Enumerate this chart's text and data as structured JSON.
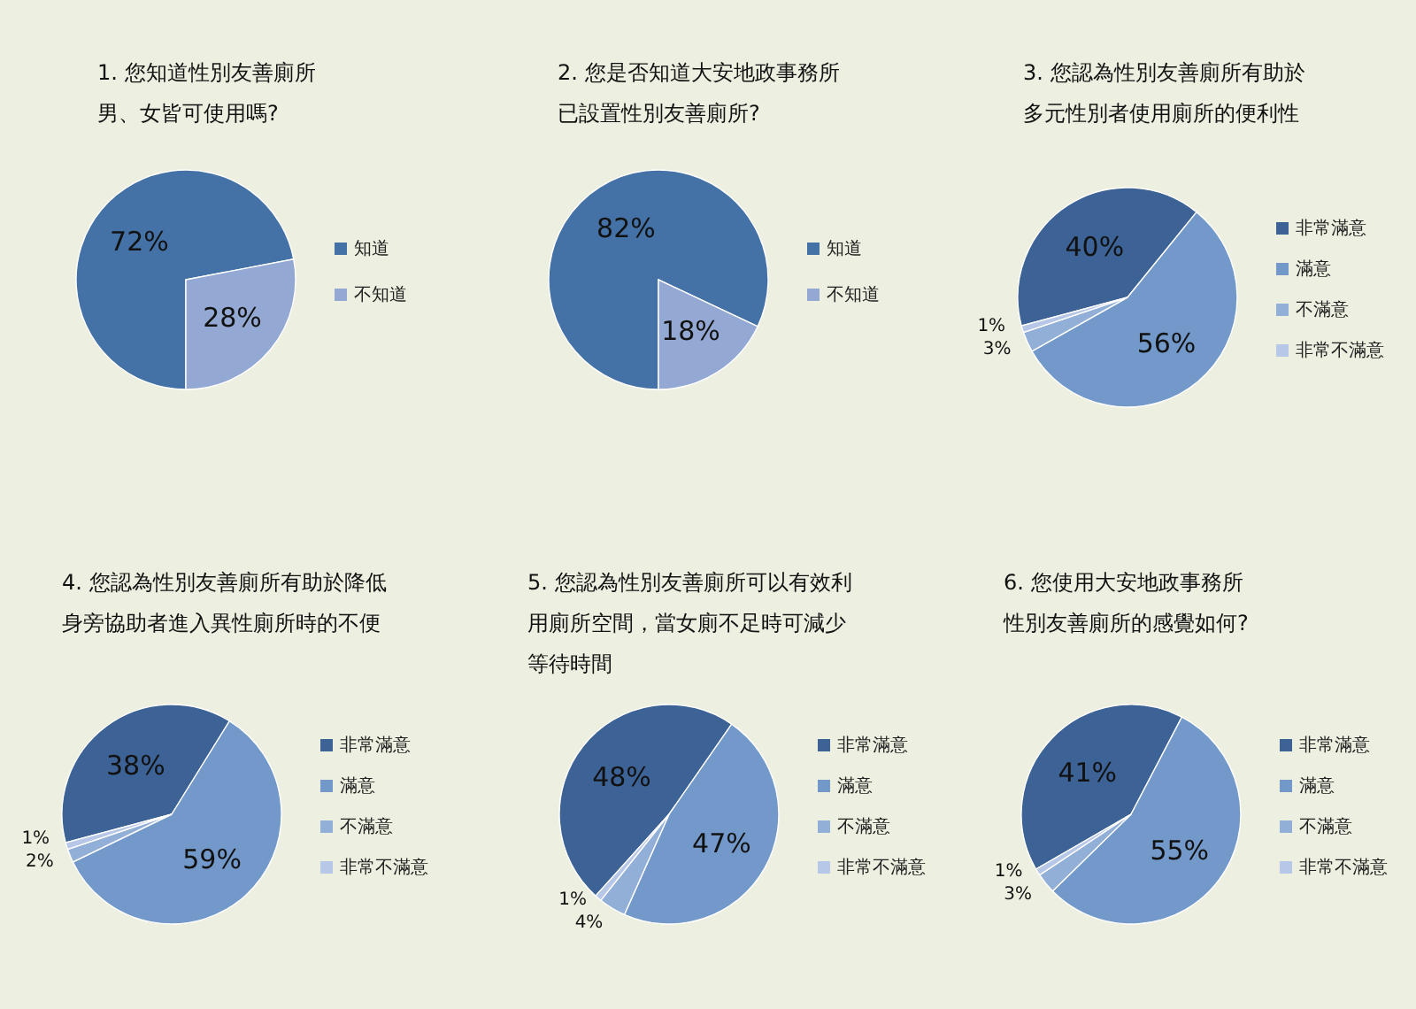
{
  "chart_data": [
    {
      "type": "pie",
      "title": "1. 您知道性別友善廁所男、女皆可使用嗎?",
      "categories": [
        "知道",
        "不知道"
      ],
      "values": [
        72,
        28
      ],
      "value_labels": [
        "72%",
        "28%"
      ],
      "colors": [
        "#4471a6",
        "#93a8d2"
      ],
      "legend": "right"
    },
    {
      "type": "pie",
      "title": "2. 您是否知道大安地政事務所已設置性別友善廁所?",
      "categories": [
        "知道",
        "不知道"
      ],
      "values": [
        82,
        18
      ],
      "value_labels": [
        "82%",
        "18%"
      ],
      "colors": [
        "#4471a6",
        "#93a8d2"
      ],
      "legend": "right"
    },
    {
      "type": "pie",
      "title": "3. 您認為性別友善廁所有助於多元性別者使用廁所的便利性",
      "categories": [
        "非常滿意",
        "滿意",
        "不滿意",
        "非常不滿意"
      ],
      "values": [
        40,
        56,
        3,
        1
      ],
      "value_labels": [
        "40%",
        "56%",
        "3%",
        "1%"
      ],
      "colors": [
        "#3d6396",
        "#7399ca",
        "#92afd8",
        "#b7c7e7"
      ],
      "legend": "right"
    },
    {
      "type": "pie",
      "title": "4. 您認為性別友善廁所有助於降低身旁協助者進入異性廁所時的不便",
      "categories": [
        "非常滿意",
        "滿意",
        "不滿意",
        "非常不滿意"
      ],
      "values": [
        38,
        59,
        2,
        1
      ],
      "value_labels": [
        "38%",
        "59%",
        "2%",
        "1%"
      ],
      "colors": [
        "#3d6396",
        "#7399ca",
        "#92afd8",
        "#b7c7e7"
      ],
      "legend": "right"
    },
    {
      "type": "pie",
      "title": "5. 您認為性別友善廁所可以有效利用廁所空間，當女廁不足時可減少等待時間",
      "categories": [
        "非常滿意",
        "滿意",
        "不滿意",
        "非常不滿意"
      ],
      "values": [
        48,
        47,
        4,
        1
      ],
      "value_labels": [
        "48%",
        "47%",
        "4%",
        "1%"
      ],
      "colors": [
        "#3d6396",
        "#7399ca",
        "#92afd8",
        "#b7c7e7"
      ],
      "legend": "right"
    },
    {
      "type": "pie",
      "title": "6. 您使用大安地政事務所性別友善廁所的感覺如何?",
      "categories": [
        "非常滿意",
        "滿意",
        "不滿意",
        "非常不滿意"
      ],
      "values": [
        41,
        55,
        3,
        1
      ],
      "value_labels": [
        "41%",
        "55%",
        "3%",
        "1%"
      ],
      "colors": [
        "#3d6396",
        "#7399ca",
        "#92afd8",
        "#b7c7e7"
      ],
      "legend": "right"
    }
  ]
}
